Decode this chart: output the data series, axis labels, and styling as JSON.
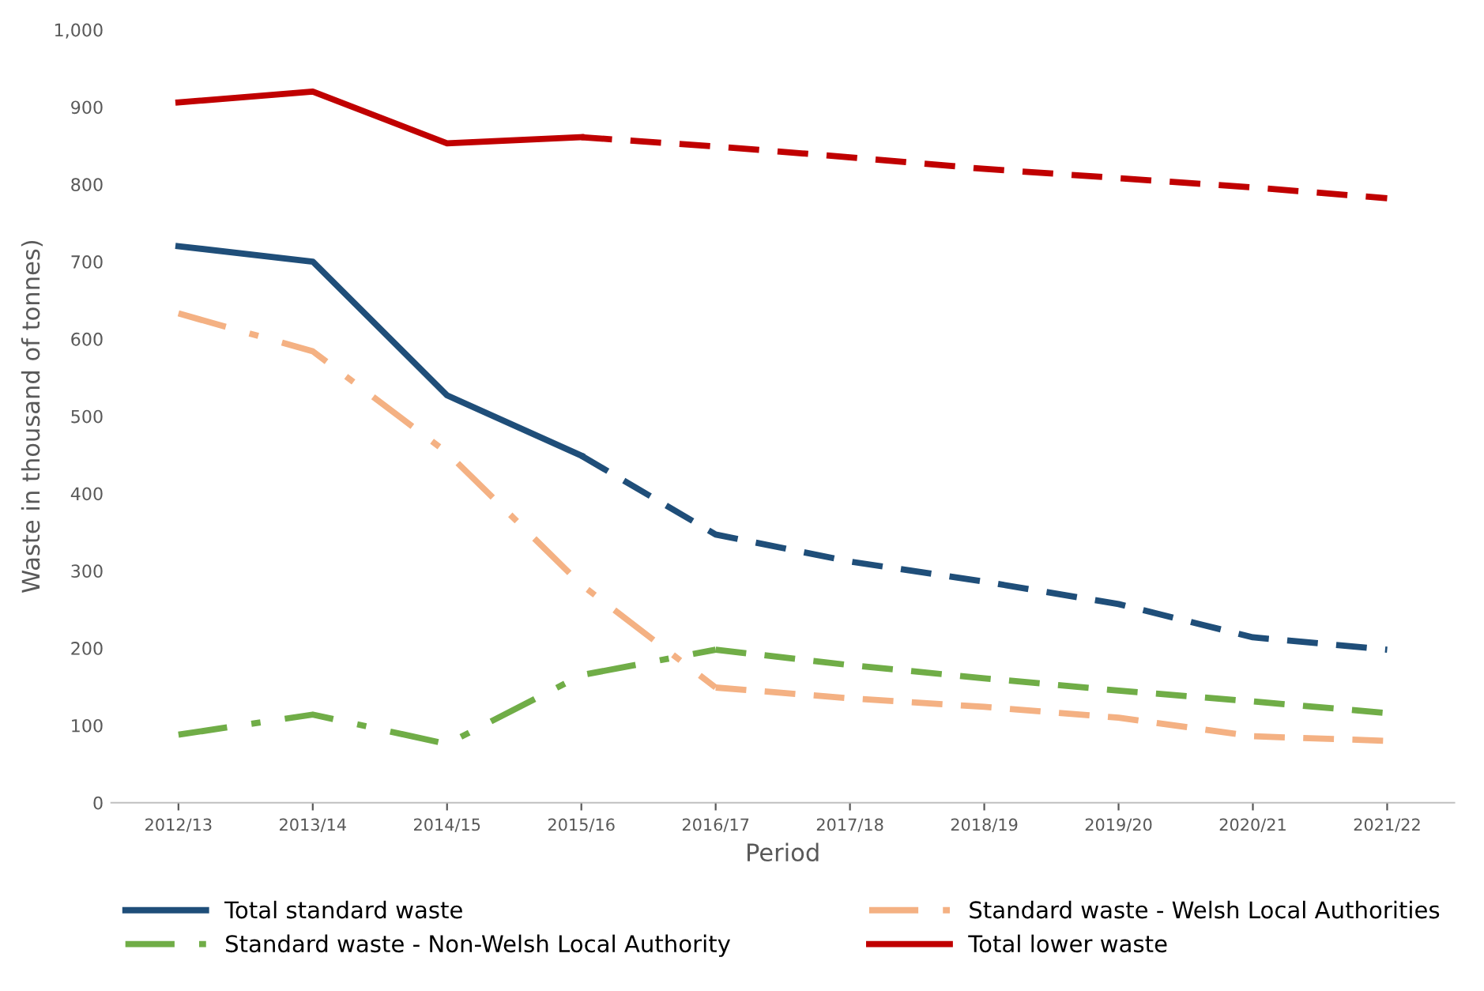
{
  "chart_data": {
    "type": "line",
    "xlabel": "Period",
    "ylabel": "Waste in thousand of tonnes)",
    "categories": [
      "2012/13",
      "2013/14",
      "2014/15",
      "2015/16",
      "2016/17",
      "2017/18",
      "2018/19",
      "2019/20",
      "2020/21",
      "2021/22"
    ],
    "series": [
      {
        "name": "Total standard waste",
        "color": "#1f4e79",
        "line_style": [
          "solid",
          "solid",
          "solid",
          "dashed",
          "dashed",
          "dashed",
          "dashed",
          "dashed",
          "dashed"
        ],
        "values": [
          720,
          700,
          527,
          449,
          347,
          312,
          286,
          257,
          214,
          198
        ]
      },
      {
        "name": "Standard waste - Welsh Local Authorities",
        "color": "#f4b183",
        "line_style": [
          "dashdot",
          "dashdot",
          "dashdot",
          "dashdot",
          "dashed",
          "dashed",
          "dashed",
          "dashed",
          "dashed"
        ],
        "values": [
          633,
          584,
          453,
          282,
          149,
          135,
          124,
          110,
          86,
          80
        ]
      },
      {
        "name": "Standard waste - Non-Welsh Local Authority",
        "color": "#70ad47",
        "line_style": [
          "dashdot",
          "dashdot",
          "dashdot",
          "dashdot",
          "dashed",
          "dashed",
          "dashed",
          "dashed",
          "dashed"
        ],
        "values": [
          88,
          114,
          76,
          165,
          198,
          178,
          161,
          145,
          131,
          116
        ]
      },
      {
        "name": "Total lower waste",
        "color": "#c00000",
        "line_style": [
          "solid",
          "solid",
          "solid",
          "dashed",
          "dashed",
          "dashed",
          "dashed",
          "dashed",
          "dashed"
        ],
        "values": [
          906,
          920,
          853,
          861,
          849,
          835,
          820,
          808,
          796,
          782
        ]
      }
    ],
    "ylim": [
      0,
      1000
    ],
    "yticks": [
      0,
      {
        "value": 100,
        "label": "100"
      },
      200,
      300,
      400,
      500,
      600,
      700,
      800,
      900,
      {
        "value": 1000,
        "label": "1,000"
      }
    ],
    "grid": false,
    "legend": "bottom",
    "marker": "none"
  }
}
